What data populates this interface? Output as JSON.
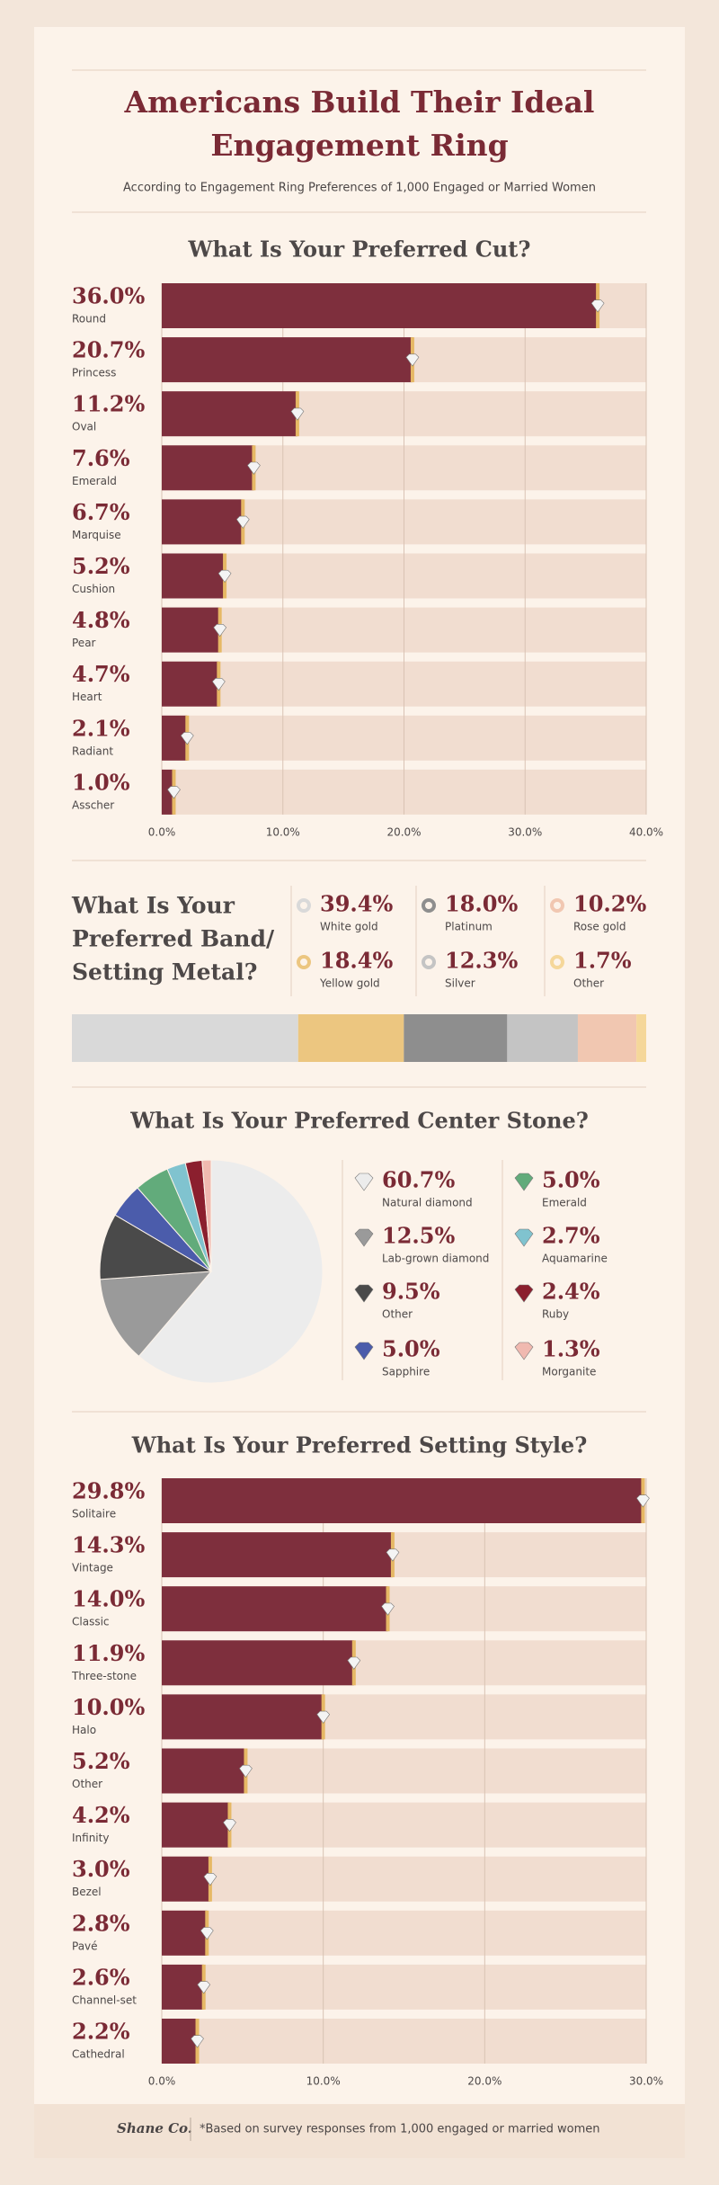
{
  "header": {
    "title": [
      "Americans Build Their Ideal",
      "Engagement Ring"
    ],
    "subtitle": "According to Engagement Ring Preferences of 1,000 Engaged or Married Women"
  },
  "chart_data": [
    {
      "type": "hbar",
      "title": [
        "What Is Your Preferred Cut?"
      ],
      "categories": [
        "Round",
        "Princess",
        "Oval",
        "Emerald",
        "Marquise",
        "Cushion",
        "Pear",
        "Heart",
        "Radiant",
        "Asscher"
      ],
      "values": [
        36.0,
        20.7,
        11.2,
        7.6,
        6.7,
        5.2,
        4.8,
        4.7,
        2.1,
        1.0
      ],
      "value_labels": [
        "36.0%",
        "20.7%",
        "11.2%",
        "7.6%",
        "6.7%",
        "5.2%",
        "4.8%",
        "4.7%",
        "2.1%",
        "1.0%"
      ],
      "color": "#7e2f3d",
      "xlim": [
        0,
        40
      ],
      "xticks": [
        {
          "value": 0,
          "label": "0.0%"
        },
        {
          "value": 10,
          "label": "10.0%"
        },
        {
          "value": 20,
          "label": "20.0%"
        },
        {
          "value": 30,
          "label": "30.0%"
        },
        {
          "value": 40,
          "label": "40.0%"
        }
      ],
      "grid": true
    },
    {
      "type": "stacked",
      "title": [
        "What Is Your",
        "Preferred Band/",
        "Setting Metal?"
      ],
      "categories": [
        "White gold",
        "Yellow gold",
        "Platinum",
        "Silver",
        "Rose gold",
        "Other"
      ],
      "values": [
        39.4,
        18.4,
        18.0,
        12.3,
        10.2,
        1.7
      ],
      "value_labels": [
        "39.4%",
        "18.4%",
        "18.0%",
        "12.3%",
        "10.2%",
        "1.7%"
      ],
      "colors": [
        "#d9d9d9",
        "#ecc680",
        "#8e8e8e",
        "#c4c4c4",
        "#f1c7b1",
        "#f5d79a"
      ]
    },
    {
      "type": "pie",
      "title": [
        "What Is Your Preferred Center Stone?"
      ],
      "categories": [
        "Natural diamond",
        "Lab-grown diamond",
        "Other",
        "Sapphire",
        "Emerald",
        "Aquamarine",
        "Ruby",
        "Morganite"
      ],
      "values": [
        60.7,
        12.5,
        9.5,
        5.0,
        5.0,
        2.7,
        2.4,
        1.3
      ],
      "value_labels": [
        "60.7%",
        "12.5%",
        "9.5%",
        "5.0%",
        "5.0%",
        "2.7%",
        "2.4%",
        "1.3%"
      ],
      "colors": [
        "#ececec",
        "#9a9a9a",
        "#4a4a4a",
        "#4b5cab",
        "#62ab7b",
        "#80c3cf",
        "#8b1f2e",
        "#f0b9b0"
      ]
    },
    {
      "type": "hbar",
      "title": [
        "What Is Your Preferred Setting Style?"
      ],
      "categories": [
        "Solitaire",
        "Vintage",
        "Classic",
        "Three-stone",
        "Halo",
        "Other",
        "Infinity",
        "Bezel",
        "Pavé",
        "Channel-set",
        "Cathedral"
      ],
      "values": [
        29.8,
        14.3,
        14.0,
        11.9,
        10.0,
        5.2,
        4.2,
        3.0,
        2.8,
        2.6,
        2.2
      ],
      "value_labels": [
        "29.8%",
        "14.3%",
        "14.0%",
        "11.9%",
        "10.0%",
        "5.2%",
        "4.2%",
        "3.0%",
        "2.8%",
        "2.6%",
        "2.2%"
      ],
      "color": "#7e2f3d",
      "xlim": [
        0,
        30
      ],
      "xticks": [
        {
          "value": 0,
          "label": "0.0%"
        },
        {
          "value": 10,
          "label": "10.0%"
        },
        {
          "value": 20,
          "label": "20.0%"
        },
        {
          "value": 30,
          "label": "30.0%"
        }
      ],
      "grid": true
    }
  ],
  "footer": {
    "logo": "Shane Co.",
    "note": "*Based on survey responses from 1,000 engaged or married women"
  }
}
